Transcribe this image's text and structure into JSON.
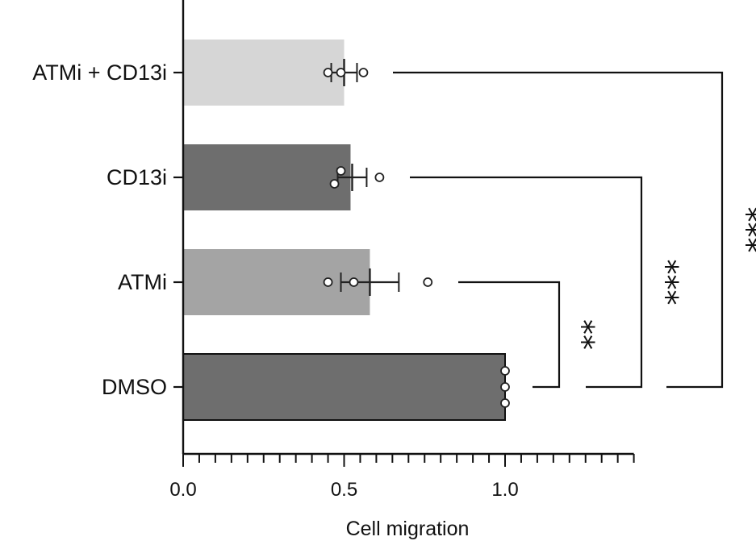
{
  "chart_data": {
    "type": "bar",
    "orientation": "horizontal",
    "title": "",
    "xlabel": "Cell migration",
    "ylabel": "",
    "xlim": [
      0,
      1.4
    ],
    "xticks": [
      "0.0",
      "0.5",
      "1.0"
    ],
    "xtick_values": [
      0,
      0.5,
      1.0
    ],
    "minor_tick_step": 0.05,
    "grid": false,
    "legend": "none",
    "categories": [
      "ATMi + CD13i",
      "CD13i",
      "ATMi",
      "DMSO"
    ],
    "values": [
      0.5,
      0.52,
      0.58,
      1.0
    ],
    "error_low": [
      0.46,
      0.48,
      0.49,
      1.0
    ],
    "error_high": [
      0.54,
      0.57,
      0.67,
      1.0
    ],
    "points": [
      [
        0.45,
        0.49,
        0.56
      ],
      [
        0.49,
        0.47,
        0.61
      ],
      [
        0.45,
        0.53,
        0.76
      ],
      [
        1.0,
        1.0,
        1.0
      ]
    ],
    "bar_colors": [
      "#d6d6d6",
      "#6e6e6e",
      "#a4a4a4",
      "#6e6e6e"
    ],
    "significance": [
      {
        "from": "ATMi",
        "to": "DMSO",
        "label": "**"
      },
      {
        "from": "CD13i",
        "to": "DMSO",
        "label": "***"
      },
      {
        "from": "ATMi + CD13i",
        "to": "DMSO",
        "label": "***"
      }
    ]
  }
}
